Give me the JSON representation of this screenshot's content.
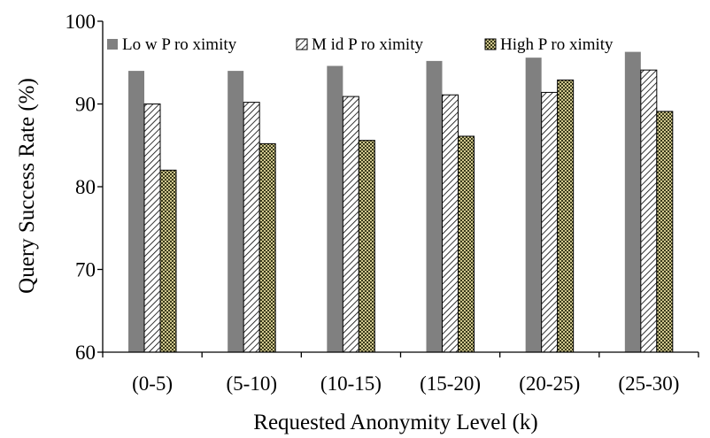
{
  "chart_data": {
    "type": "bar",
    "title": "",
    "xlabel": "Requested Anonymity Level (k)",
    "ylabel": "Query Success Rate (%)",
    "ylim": [
      60,
      100
    ],
    "yticks": [
      60,
      70,
      80,
      90,
      100
    ],
    "grid": false,
    "legend_position": "top",
    "categories": [
      "(0-5)",
      "(5-10)",
      "(10-15)",
      "(15-20)",
      "(20-25)",
      "(25-30)"
    ],
    "series": [
      {
        "name": "Lo w P ro ximity",
        "color": "#808080",
        "fill": "solid",
        "values": [
          94.0,
          94.0,
          94.6,
          95.2,
          95.6,
          96.3
        ]
      },
      {
        "name": "M id P ro ximity",
        "color": "#ffffff",
        "fill": "diagonal-hatch",
        "values": [
          90.0,
          90.2,
          90.9,
          91.1,
          91.4,
          94.1
        ]
      },
      {
        "name": "High P ro ximity",
        "color": "#a8a06a",
        "fill": "dotted-check",
        "values": [
          82.0,
          85.2,
          85.6,
          86.1,
          92.9,
          89.1
        ]
      }
    ]
  }
}
